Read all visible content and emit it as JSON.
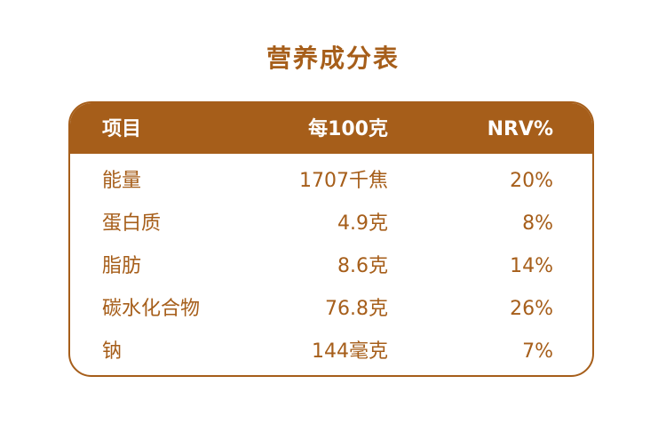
{
  "title": "营养成分表",
  "header": {
    "item": "项目",
    "per100": "每100克",
    "nrv": "NRV%"
  },
  "rows": [
    {
      "item": "能量",
      "per100": "1707千焦",
      "nrv": "20%"
    },
    {
      "item": "蛋白质",
      "per100": "4.9克",
      "nrv": "8%"
    },
    {
      "item": "脂肪",
      "per100": "8.6克",
      "nrv": "14%"
    },
    {
      "item": "碳水化合物",
      "per100": "76.8克",
      "nrv": "26%"
    },
    {
      "item": "钠",
      "per100": "144毫克",
      "nrv": "7%"
    }
  ],
  "colors": {
    "accent": "#a65e1a",
    "background": "#ffffff"
  }
}
